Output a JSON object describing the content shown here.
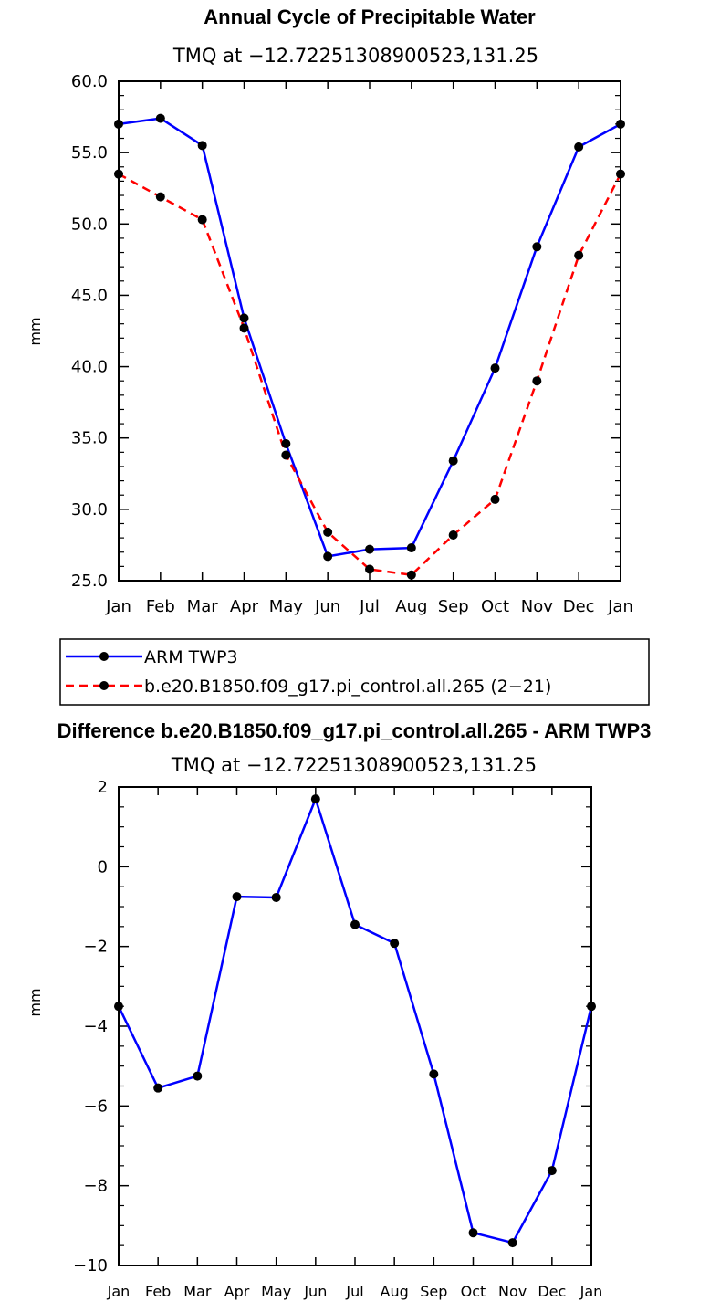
{
  "chart_data": [
    {
      "type": "line",
      "title": "Annual Cycle of Precipitable Water",
      "subtitle": "TMQ at −12.72251308900523,131.25",
      "ylabel": "mm",
      "xlabel": "",
      "categories": [
        "Jan",
        "Feb",
        "Mar",
        "Apr",
        "May",
        "Jun",
        "Jul",
        "Aug",
        "Sep",
        "Oct",
        "Nov",
        "Dec",
        "Jan"
      ],
      "ylim": [
        25,
        60
      ],
      "yticks": [
        "25.0",
        "30.0",
        "35.0",
        "40.0",
        "45.0",
        "50.0",
        "55.0",
        "60.0"
      ],
      "grid": false,
      "legend_position": "below",
      "series": [
        {
          "name": "ARM TWP3",
          "color": "#0000ff",
          "dash": "solid",
          "values": [
            57.0,
            57.4,
            55.5,
            43.4,
            34.6,
            26.7,
            27.2,
            27.3,
            33.4,
            39.9,
            48.4,
            55.4,
            57.0
          ]
        },
        {
          "name": "b.e20.B1850.f09_g17.pi_control.all.265 (2−21)",
          "color": "#ff0000",
          "dash": "dashed",
          "values": [
            53.5,
            51.9,
            50.3,
            42.7,
            33.8,
            28.4,
            25.8,
            25.4,
            28.2,
            30.7,
            39.0,
            47.8,
            53.5
          ]
        }
      ]
    },
    {
      "type": "line",
      "title": "Difference b.e20.B1850.f09_g17.pi_control.all.265 - ARM TWP3",
      "subtitle": "TMQ at −12.72251308900523,131.25",
      "ylabel": "mm",
      "xlabel": "",
      "categories": [
        "Jan",
        "Feb",
        "Mar",
        "Apr",
        "May",
        "Jun",
        "Jul",
        "Aug",
        "Sep",
        "Oct",
        "Nov",
        "Dec",
        "Jan"
      ],
      "ylim": [
        -10,
        2
      ],
      "yticks": [
        "−10",
        "−8",
        "−6",
        "−4",
        "−2",
        "0",
        "2"
      ],
      "grid": false,
      "series": [
        {
          "color": "#0000ff",
          "dash": "solid",
          "values": [
            -3.5,
            -5.55,
            -5.25,
            -0.75,
            -0.77,
            1.7,
            -1.45,
            -1.92,
            -5.2,
            -9.18,
            -9.43,
            -7.62,
            -3.5
          ]
        }
      ]
    }
  ]
}
